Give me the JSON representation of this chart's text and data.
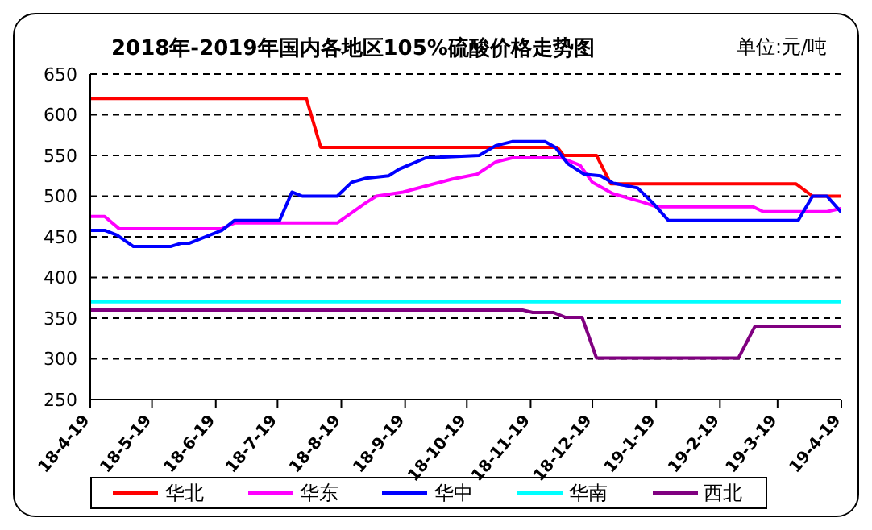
{
  "chart_data": {
    "type": "line",
    "title": "2018年-2019年国内各地区105%硫酸价格走势图",
    "subtitle": "单位:元/吨",
    "xlim": [
      "2018-04-19",
      "2019-04-19"
    ],
    "xticks": [
      {
        "value": "2018-04-19",
        "label": "18-4-19"
      },
      {
        "value": "2018-05-19",
        "label": "18-5-19"
      },
      {
        "value": "2018-06-19",
        "label": "18-6-19"
      },
      {
        "value": "2018-07-19",
        "label": "18-7-19"
      },
      {
        "value": "2018-08-19",
        "label": "18-8-19"
      },
      {
        "value": "2018-09-19",
        "label": "18-9-19"
      },
      {
        "value": "2018-10-19",
        "label": "18-10-19"
      },
      {
        "value": "2018-11-19",
        "label": "18-11-19"
      },
      {
        "value": "2018-12-19",
        "label": "18-12-19"
      },
      {
        "value": "2019-01-19",
        "label": "19-1-19"
      },
      {
        "value": "2019-02-19",
        "label": "19-2-19"
      },
      {
        "value": "2019-03-19",
        "label": "19-3-19"
      },
      {
        "value": "2019-04-19",
        "label": "19-4-19"
      }
    ],
    "ylim": [
      250,
      650
    ],
    "yticks": [
      250,
      300,
      350,
      400,
      450,
      500,
      550,
      600,
      650
    ],
    "grid": "y",
    "legend": "bottom",
    "marker": "none",
    "line_style": "solid",
    "series": [
      {
        "name": "华北",
        "color": "#ff0000",
        "x": [
          "2018-04-19",
          "2018-08-02",
          "2018-08-09",
          "2018-12-02",
          "2018-12-05",
          "2018-12-21",
          "2018-12-28",
          "2019-03-28",
          "2019-04-05",
          "2019-04-19"
        ],
        "values": [
          620,
          620,
          560,
          560,
          550,
          550,
          515,
          515,
          500,
          500
        ]
      },
      {
        "name": "华东",
        "color": "#ff00ff",
        "x": [
          "2018-04-19",
          "2018-04-26",
          "2018-05-03",
          "2018-06-22",
          "2018-06-28",
          "2018-08-17",
          "2018-08-31",
          "2018-09-05",
          "2018-09-18",
          "2018-10-12",
          "2018-10-24",
          "2018-11-02",
          "2018-11-10",
          "2018-12-04",
          "2018-12-13",
          "2018-12-19",
          "2018-12-29",
          "2019-01-12",
          "2019-01-19",
          "2019-03-07",
          "2019-03-12",
          "2019-04-12",
          "2019-04-19"
        ],
        "values": [
          475,
          475,
          460,
          460,
          467,
          467,
          492,
          500,
          505,
          521,
          527,
          542,
          547,
          547,
          538,
          517,
          503,
          493,
          487,
          487,
          481,
          481,
          485
        ]
      },
      {
        "name": "华中",
        "color": "#0000ff",
        "x": [
          "2018-04-19",
          "2018-04-26",
          "2018-05-02",
          "2018-05-10",
          "2018-05-28",
          "2018-06-02",
          "2018-06-06",
          "2018-06-22",
          "2018-06-28",
          "2018-07-20",
          "2018-07-26",
          "2018-07-31",
          "2018-08-17",
          "2018-08-24",
          "2018-08-31",
          "2018-09-11",
          "2018-09-16",
          "2018-09-29",
          "2018-10-25",
          "2018-11-02",
          "2018-11-10",
          "2018-11-26",
          "2018-12-01",
          "2018-12-07",
          "2018-12-15",
          "2018-12-23",
          "2018-12-29",
          "2019-01-10",
          "2019-01-18",
          "2019-01-25",
          "2019-03-29",
          "2019-04-05",
          "2019-04-12",
          "2019-04-19"
        ],
        "values": [
          458,
          458,
          452,
          438,
          438,
          442,
          442,
          458,
          470,
          470,
          505,
          500,
          500,
          517,
          522,
          525,
          533,
          547,
          550,
          562,
          567,
          567,
          560,
          540,
          527,
          525,
          516,
          510,
          490,
          470,
          470,
          500,
          500,
          480
        ]
      },
      {
        "name": "华南",
        "color": "#00ffff",
        "x": [
          "2018-04-19",
          "2019-04-19"
        ],
        "values": [
          370,
          370
        ]
      },
      {
        "name": "西北",
        "color": "#800080",
        "x": [
          "2018-04-19",
          "2018-11-15",
          "2018-11-20",
          "2018-11-30",
          "2018-12-06",
          "2018-12-14",
          "2018-12-21",
          "2019-02-28",
          "2019-03-08",
          "2019-04-19"
        ],
        "values": [
          360,
          360,
          357,
          357,
          351,
          351,
          301,
          301,
          340,
          340
        ]
      }
    ]
  }
}
